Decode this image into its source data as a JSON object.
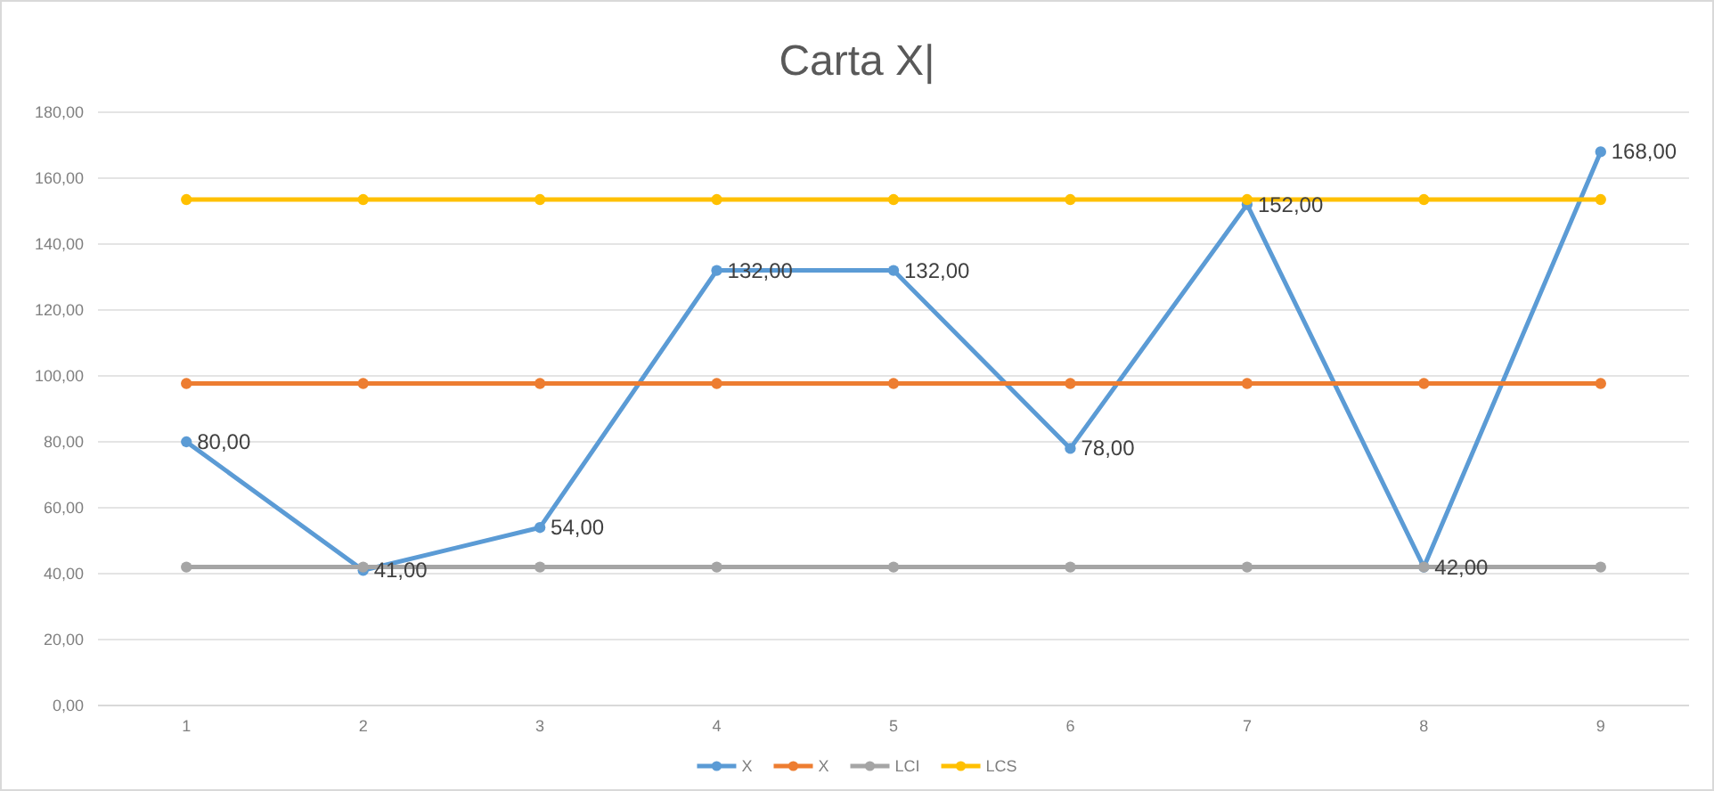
{
  "chart_data": {
    "type": "line",
    "title": "Carta X|",
    "categories": [
      "1",
      "2",
      "3",
      "4",
      "5",
      "6",
      "7",
      "8",
      "9"
    ],
    "series": [
      {
        "name": "X",
        "color": "#5b9bd5",
        "values": [
          80,
          41,
          54,
          132,
          132,
          78,
          152,
          42,
          168
        ],
        "value_labels": [
          "80,00",
          "41,00",
          "54,00",
          "132,00",
          "132,00",
          "78,00",
          "152,00",
          "42,00",
          "168,00"
        ]
      },
      {
        "name": "X",
        "color": "#ed7d31",
        "values": [
          97.7,
          97.7,
          97.7,
          97.7,
          97.7,
          97.7,
          97.7,
          97.7,
          97.7
        ]
      },
      {
        "name": "LCI",
        "color": "#a5a5a5",
        "values": [
          42,
          42,
          42,
          42,
          42,
          42,
          42,
          42,
          42
        ]
      },
      {
        "name": "LCS",
        "color": "#ffc000",
        "values": [
          153.5,
          153.5,
          153.5,
          153.5,
          153.5,
          153.5,
          153.5,
          153.5,
          153.5
        ]
      }
    ],
    "ylim": [
      0,
      180
    ],
    "yticks": [
      {
        "value": 0,
        "label": "0,00"
      },
      {
        "value": 20,
        "label": "20,00"
      },
      {
        "value": 40,
        "label": "40,00"
      },
      {
        "value": 60,
        "label": "60,00"
      },
      {
        "value": 80,
        "label": "80,00"
      },
      {
        "value": 100,
        "label": "100,00"
      },
      {
        "value": 120,
        "label": "120,00"
      },
      {
        "value": 140,
        "label": "140,00"
      },
      {
        "value": 160,
        "label": "160,00"
      },
      {
        "value": 180,
        "label": "180,00"
      }
    ],
    "grid": "y",
    "legend": "bottom",
    "marker": "circle",
    "line_style": "solid"
  }
}
